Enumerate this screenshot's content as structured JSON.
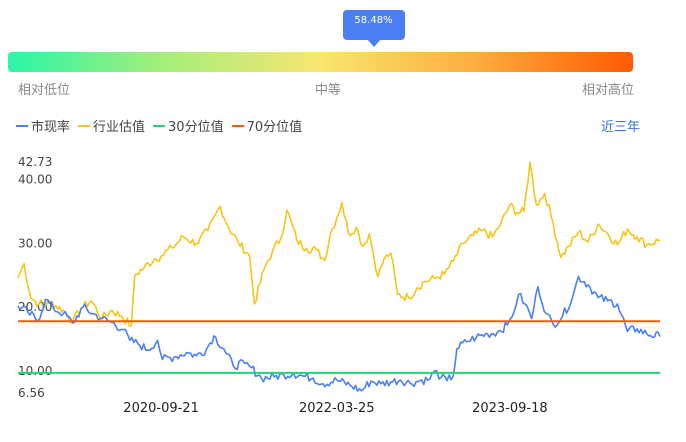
{
  "gauge": {
    "percentile_value": 0.5848,
    "percentile_label": "58.48%",
    "labels": [
      "相对低位",
      "中等",
      "相对高位"
    ]
  },
  "legend": [
    {
      "label": "市现率",
      "color": "#4a7ff5"
    },
    {
      "label": "行业估值",
      "color": "#f5c518"
    },
    {
      "label": "30分位值",
      "color": "#22d37a"
    },
    {
      "label": "70分位值",
      "color": "#ff5a00"
    }
  ],
  "period_label": "近三年",
  "chart_data": {
    "type": "line",
    "title": "",
    "ylim": [
      6.56,
      42.73
    ],
    "y_ticks": [
      {
        "value": 42.73,
        "label": "42.73"
      },
      {
        "value": 40.0,
        "label": "40.00"
      },
      {
        "value": 30.0,
        "label": "30.00"
      },
      {
        "value": 20.0,
        "label": "20.00"
      },
      {
        "value": 10.0,
        "label": "10.00"
      },
      {
        "value": 6.56,
        "label": "6.56"
      }
    ],
    "x_range": [
      "2019-07-01",
      "2024-12-31"
    ],
    "x_ticks": [
      "2020-09-21",
      "2022-03-25",
      "2023-09-18"
    ],
    "grid": false,
    "legend_position": "top-left",
    "series": [
      {
        "name": "行业估值",
        "color": "#f5c518",
        "points": [
          [
            "2019-07-01",
            24.6
          ],
          [
            "2019-07-20",
            26.8
          ],
          [
            "2019-08-10",
            21.5
          ],
          [
            "2019-09-05",
            20.5
          ],
          [
            "2019-10-10",
            20.8
          ],
          [
            "2019-11-20",
            19.5
          ],
          [
            "2019-12-20",
            17.8
          ],
          [
            "2020-01-15",
            19.8
          ],
          [
            "2020-02-15",
            21.0
          ],
          [
            "2020-03-20",
            18.3
          ],
          [
            "2020-04-20",
            19.5
          ],
          [
            "2020-05-20",
            18.6
          ],
          [
            "2020-06-20",
            17.1
          ],
          [
            "2020-07-01",
            25.0
          ],
          [
            "2020-07-30",
            26.2
          ],
          [
            "2020-08-30",
            27.5
          ],
          [
            "2020-09-21",
            28.0
          ],
          [
            "2020-10-25",
            29.3
          ],
          [
            "2020-11-30",
            31.0
          ],
          [
            "2021-01-10",
            30.0
          ],
          [
            "2021-02-15",
            32.0
          ],
          [
            "2021-03-10",
            34.5
          ],
          [
            "2021-03-25",
            35.8
          ],
          [
            "2021-04-20",
            32.5
          ],
          [
            "2021-05-20",
            30.2
          ],
          [
            "2021-06-25",
            28.0
          ],
          [
            "2021-07-10",
            20.5
          ],
          [
            "2021-08-10",
            26.0
          ],
          [
            "2021-09-05",
            28.8
          ],
          [
            "2021-10-01",
            30.8
          ],
          [
            "2021-10-20",
            35.2
          ],
          [
            "2021-11-20",
            30.5
          ],
          [
            "2021-12-20",
            29.2
          ],
          [
            "2022-01-20",
            29.0
          ],
          [
            "2022-02-15",
            27.3
          ],
          [
            "2022-03-05",
            31.5
          ],
          [
            "2022-03-25",
            34.0
          ],
          [
            "2022-04-10",
            36.4
          ],
          [
            "2022-05-01",
            31.5
          ],
          [
            "2022-05-25",
            32.5
          ],
          [
            "2022-06-15",
            29.5
          ],
          [
            "2022-07-05",
            31.5
          ],
          [
            "2022-08-01",
            24.8
          ],
          [
            "2022-08-20",
            27.5
          ],
          [
            "2022-09-10",
            28.5
          ],
          [
            "2022-10-01",
            22.0
          ],
          [
            "2022-11-05",
            21.5
          ],
          [
            "2022-12-01",
            23.0
          ],
          [
            "2022-12-25",
            24.0
          ],
          [
            "2023-01-25",
            24.5
          ],
          [
            "2023-02-25",
            25.2
          ],
          [
            "2023-03-25",
            27.2
          ],
          [
            "2023-04-25",
            30.0
          ],
          [
            "2023-05-25",
            31.2
          ],
          [
            "2023-06-25",
            32.0
          ],
          [
            "2023-07-25",
            31.0
          ],
          [
            "2023-08-20",
            33.0
          ],
          [
            "2023-09-18",
            36.0
          ],
          [
            "2023-10-10",
            34.8
          ],
          [
            "2023-11-01",
            35.0
          ],
          [
            "2023-11-20",
            42.7
          ],
          [
            "2023-12-10",
            36.0
          ],
          [
            "2024-01-05",
            37.8
          ],
          [
            "2024-02-01",
            33.0
          ],
          [
            "2024-02-25",
            27.8
          ],
          [
            "2024-03-20",
            29.5
          ],
          [
            "2024-04-20",
            31.8
          ],
          [
            "2024-05-20",
            30.2
          ],
          [
            "2024-06-20",
            33.0
          ],
          [
            "2024-07-20",
            31.5
          ],
          [
            "2024-08-20",
            29.8
          ],
          [
            "2024-09-20",
            32.2
          ],
          [
            "2024-10-20",
            31.0
          ],
          [
            "2024-11-20",
            29.8
          ],
          [
            "2024-12-31",
            30.5
          ]
        ]
      },
      {
        "name": "市现率",
        "color": "#4a7ff5",
        "points": [
          [
            "2019-07-01",
            20.2
          ],
          [
            "2019-08-01",
            19.2
          ],
          [
            "2019-09-01",
            17.9
          ],
          [
            "2019-09-25",
            21.2
          ],
          [
            "2019-10-20",
            19.8
          ],
          [
            "2019-11-20",
            19.0
          ],
          [
            "2019-12-20",
            17.5
          ],
          [
            "2020-01-20",
            20.0
          ],
          [
            "2020-02-20",
            19.0
          ],
          [
            "2020-03-20",
            18.2
          ],
          [
            "2020-04-20",
            17.6
          ],
          [
            "2020-05-25",
            16.5
          ],
          [
            "2020-06-15",
            14.8
          ],
          [
            "2020-07-10",
            14.3
          ],
          [
            "2020-08-10",
            13.3
          ],
          [
            "2020-09-10",
            14.8
          ],
          [
            "2020-09-25",
            11.8
          ],
          [
            "2020-11-01",
            12.2
          ],
          [
            "2020-12-10",
            12.9
          ],
          [
            "2021-01-10",
            12.4
          ],
          [
            "2021-02-10",
            13.4
          ],
          [
            "2021-03-05",
            15.5
          ],
          [
            "2021-04-05",
            13.5
          ],
          [
            "2021-05-05",
            10.8
          ],
          [
            "2021-06-10",
            11.2
          ],
          [
            "2021-07-01",
            10.5
          ],
          [
            "2021-08-01",
            8.9
          ],
          [
            "2021-09-10",
            9.1
          ],
          [
            "2021-10-10",
            9.4
          ],
          [
            "2021-11-10",
            9.6
          ],
          [
            "2021-12-10",
            9.2
          ],
          [
            "2022-01-10",
            8.9
          ],
          [
            "2022-02-10",
            8.0
          ],
          [
            "2022-03-25",
            8.6
          ],
          [
            "2022-05-05",
            7.8
          ],
          [
            "2022-06-10",
            6.9
          ],
          [
            "2022-07-10",
            8.4
          ],
          [
            "2022-08-10",
            8.0
          ],
          [
            "2022-09-10",
            8.3
          ],
          [
            "2022-10-10",
            8.6
          ],
          [
            "2022-11-10",
            8.1
          ],
          [
            "2022-12-10",
            8.5
          ],
          [
            "2023-01-10",
            8.7
          ],
          [
            "2023-01-25",
            10.0
          ],
          [
            "2023-02-15",
            9.0
          ],
          [
            "2023-03-05",
            8.5
          ],
          [
            "2023-03-25",
            9.3
          ],
          [
            "2023-04-05",
            13.5
          ],
          [
            "2023-05-05",
            14.6
          ],
          [
            "2023-06-05",
            15.3
          ],
          [
            "2023-07-10",
            15.8
          ],
          [
            "2023-08-10",
            16.1
          ],
          [
            "2023-09-10",
            17.2
          ],
          [
            "2023-09-25",
            18.5
          ],
          [
            "2023-10-15",
            22.0
          ],
          [
            "2023-11-05",
            20.5
          ],
          [
            "2023-11-25",
            18.2
          ],
          [
            "2023-12-15",
            23.2
          ],
          [
            "2024-01-10",
            19.0
          ],
          [
            "2024-02-01",
            17.3
          ],
          [
            "2024-03-01",
            18.6
          ],
          [
            "2024-04-01",
            21.5
          ],
          [
            "2024-04-20",
            24.8
          ],
          [
            "2024-05-20",
            23.5
          ],
          [
            "2024-06-20",
            21.5
          ],
          [
            "2024-07-20",
            21.0
          ],
          [
            "2024-08-20",
            20.5
          ],
          [
            "2024-09-20",
            16.2
          ],
          [
            "2024-10-20",
            16.6
          ],
          [
            "2024-11-20",
            15.8
          ],
          [
            "2024-12-31",
            15.4
          ]
        ]
      },
      {
        "name": "30分位值",
        "color": "#22d37a",
        "points": [
          [
            "2019-07-01",
            9.7
          ],
          [
            "2024-12-31",
            9.7
          ]
        ]
      },
      {
        "name": "70分位值",
        "color": "#ff5a00",
        "points": [
          [
            "2019-07-01",
            17.8
          ],
          [
            "2024-12-31",
            17.8
          ]
        ]
      }
    ]
  }
}
